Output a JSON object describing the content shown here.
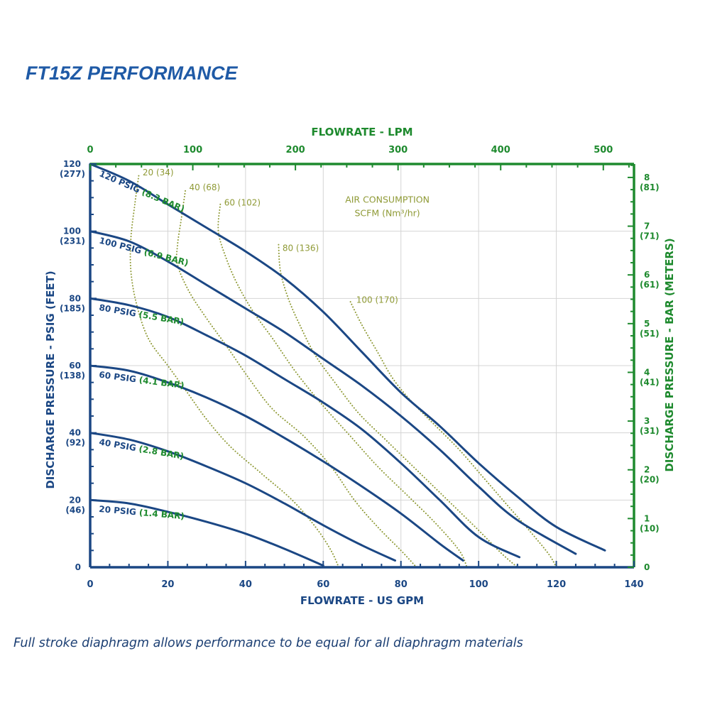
{
  "page": {
    "title": "FT15Z PERFORMANCE",
    "footnote": "Full stroke diaphragm allows performance to be equal for all diaphragm materials"
  },
  "colors": {
    "blue": "#1b4784",
    "green": "#1e8a2e",
    "olive": "#8f9a36",
    "grid": "#d4d4d4",
    "title_blue": "#1f5aa6"
  },
  "chart_data": {
    "type": "line",
    "title": "FT15Z PERFORMANCE",
    "xlabel": "FLOWRATE - US GPM",
    "ylabel": "DISCHARGE PRESSURE - PSIG (FEET)",
    "x2label": "FLOWRATE - LPM",
    "y2label": "DISCHARGE PRESSURE - BAR (METERS)",
    "xlim": [
      0,
      140
    ],
    "ylim": [
      0,
      120
    ],
    "grid": true,
    "x_ticks": [
      "0",
      "20",
      "40",
      "60",
      "80",
      "100",
      "120",
      "140"
    ],
    "y_ticks": [
      {
        "value": 0,
        "label": "0",
        "sub": ""
      },
      {
        "value": 20,
        "label": "20",
        "sub": "(46)"
      },
      {
        "value": 40,
        "label": "40",
        "sub": "(92)"
      },
      {
        "value": 60,
        "label": "60",
        "sub": "(138)"
      },
      {
        "value": 80,
        "label": "80",
        "sub": "(185)"
      },
      {
        "value": 100,
        "label": "100",
        "sub": "(231)"
      },
      {
        "value": 120,
        "label": "120",
        "sub": "(277)"
      }
    ],
    "x2_ticks": [
      {
        "lpm": 0,
        "label": "0"
      },
      {
        "lpm": 100,
        "label": "100"
      },
      {
        "lpm": 200,
        "label": "200"
      },
      {
        "lpm": 300,
        "label": "300"
      },
      {
        "lpm": 400,
        "label": "400"
      },
      {
        "lpm": 500,
        "label": "500"
      }
    ],
    "y2_ticks": [
      {
        "psig": 0,
        "label": "0",
        "sub": ""
      },
      {
        "psig": 14.5,
        "label": "1",
        "sub": "(10)"
      },
      {
        "psig": 29,
        "label": "2",
        "sub": "(20)"
      },
      {
        "psig": 43.5,
        "label": "3",
        "sub": "(31)"
      },
      {
        "psig": 58,
        "label": "4",
        "sub": "(41)"
      },
      {
        "psig": 72.5,
        "label": "5",
        "sub": "(51)"
      },
      {
        "psig": 87,
        "label": "6",
        "sub": "(61)"
      },
      {
        "psig": 101.5,
        "label": "7",
        "sub": "(71)"
      },
      {
        "psig": 116,
        "label": "8",
        "sub": "(81)"
      }
    ],
    "annotation": {
      "line1": "AIR CONSUMPTION",
      "line2": "SCFM (Nm³/hr)"
    },
    "series": [
      {
        "name": "120 PSIG",
        "metric": "(8.3 BAR)",
        "label_at": [
          2.2,
          116.5
        ],
        "points": [
          [
            0,
            120
          ],
          [
            10,
            115
          ],
          [
            20,
            108
          ],
          [
            30,
            101
          ],
          [
            40,
            94
          ],
          [
            50,
            86
          ],
          [
            60,
            76
          ],
          [
            70,
            64
          ],
          [
            80,
            52
          ],
          [
            90,
            42
          ],
          [
            100,
            31
          ],
          [
            110,
            21
          ],
          [
            120,
            12
          ],
          [
            132.5,
            5
          ]
        ]
      },
      {
        "name": "100 PSIG",
        "metric": "(6.9 BAR)",
        "label_at": [
          2.2,
          96.5
        ],
        "points": [
          [
            0,
            100
          ],
          [
            10,
            97
          ],
          [
            20,
            91
          ],
          [
            30,
            84
          ],
          [
            40,
            77
          ],
          [
            50,
            70
          ],
          [
            60,
            62
          ],
          [
            70,
            54
          ],
          [
            80,
            45
          ],
          [
            90,
            35
          ],
          [
            100,
            24
          ],
          [
            110,
            14
          ],
          [
            125,
            4
          ]
        ]
      },
      {
        "name": "80 PSIG",
        "metric": "(5.5 BAR)",
        "label_at": [
          2.2,
          76.5
        ],
        "points": [
          [
            0,
            80
          ],
          [
            10,
            78
          ],
          [
            20,
            74.5
          ],
          [
            30,
            69
          ],
          [
            40,
            63
          ],
          [
            50,
            56
          ],
          [
            60,
            49
          ],
          [
            70,
            41
          ],
          [
            80,
            31
          ],
          [
            90,
            20
          ],
          [
            100,
            9
          ],
          [
            110.5,
            3
          ]
        ]
      },
      {
        "name": "60 PSIG",
        "metric": "(4.1 BAR)",
        "label_at": [
          2.2,
          56.5
        ],
        "points": [
          [
            0,
            60
          ],
          [
            10,
            58.5
          ],
          [
            20,
            55
          ],
          [
            30,
            50.5
          ],
          [
            40,
            45
          ],
          [
            50,
            38.5
          ],
          [
            60,
            31.5
          ],
          [
            70,
            24
          ],
          [
            80,
            16
          ],
          [
            90,
            7
          ],
          [
            96,
            2
          ]
        ]
      },
      {
        "name": "40 PSIG",
        "metric": "(2.8 BAR)",
        "label_at": [
          2.2,
          36.5
        ],
        "points": [
          [
            0,
            40
          ],
          [
            10,
            38
          ],
          [
            20,
            34.5
          ],
          [
            30,
            30
          ],
          [
            40,
            25
          ],
          [
            50,
            19
          ],
          [
            60,
            12.5
          ],
          [
            70,
            6.5
          ],
          [
            78.5,
            2
          ]
        ]
      },
      {
        "name": "20 PSIG",
        "metric": "(1.4 BAR)",
        "label_at": [
          2.2,
          16.5
        ],
        "points": [
          [
            0,
            20
          ],
          [
            10,
            19
          ],
          [
            20,
            16.5
          ],
          [
            30,
            13.5
          ],
          [
            40,
            10
          ],
          [
            50,
            5.5
          ],
          [
            60,
            0.5
          ]
        ]
      }
    ],
    "air_lines": [
      {
        "label": "20 (34)",
        "label_at": [
          13.5,
          117.5
        ],
        "points": [
          [
            12.5,
            116.5
          ],
          [
            11.5,
            108
          ],
          [
            10.5,
            98
          ],
          [
            10.5,
            88
          ],
          [
            12,
            78
          ],
          [
            15,
            68
          ],
          [
            20,
            60
          ],
          [
            25,
            52
          ],
          [
            30,
            44
          ],
          [
            36,
            36
          ],
          [
            44,
            28
          ],
          [
            52,
            20
          ],
          [
            58,
            12
          ],
          [
            62,
            5
          ],
          [
            64,
            0
          ]
        ]
      },
      {
        "label": "40 (68)",
        "label_at": [
          25.5,
          113
        ],
        "points": [
          [
            24.5,
            112
          ],
          [
            23.5,
            104
          ],
          [
            22.5,
            96
          ],
          [
            22.5,
            90
          ],
          [
            25.5,
            82
          ],
          [
            30,
            74
          ],
          [
            35,
            66
          ],
          [
            41,
            56
          ],
          [
            47,
            47
          ],
          [
            55,
            39
          ],
          [
            62,
            30
          ],
          [
            68,
            20
          ],
          [
            74,
            12
          ],
          [
            80,
            5
          ],
          [
            84,
            0
          ]
        ]
      },
      {
        "label": "60 (102)",
        "label_at": [
          34.5,
          108.5
        ],
        "points": [
          [
            33.5,
            108
          ],
          [
            33,
            100
          ],
          [
            35,
            92
          ],
          [
            38,
            84
          ],
          [
            42,
            76
          ],
          [
            47,
            68
          ],
          [
            53,
            58
          ],
          [
            60,
            48
          ],
          [
            67,
            39
          ],
          [
            74,
            30
          ],
          [
            82,
            21
          ],
          [
            89,
            13
          ],
          [
            95,
            5
          ],
          [
            97,
            0
          ]
        ]
      },
      {
        "label": "80 (136)",
        "label_at": [
          49.5,
          95
        ],
        "points": [
          [
            48.5,
            96
          ],
          [
            49,
            88
          ],
          [
            51,
            80
          ],
          [
            54,
            72
          ],
          [
            58,
            63
          ],
          [
            63,
            55
          ],
          [
            69,
            46
          ],
          [
            76,
            38
          ],
          [
            84,
            29
          ],
          [
            92,
            20
          ],
          [
            100,
            11
          ],
          [
            106,
            4
          ],
          [
            110,
            0
          ]
        ]
      },
      {
        "label": "100 (170)",
        "label_at": [
          68.5,
          79.5
        ],
        "points": [
          [
            67,
            79
          ],
          [
            70,
            72
          ],
          [
            74,
            64
          ],
          [
            78,
            56
          ],
          [
            83,
            49
          ],
          [
            89,
            42
          ],
          [
            95,
            35
          ],
          [
            101,
            27
          ],
          [
            107,
            19
          ],
          [
            113,
            11
          ],
          [
            118,
            4
          ],
          [
            120,
            0
          ]
        ]
      }
    ]
  }
}
